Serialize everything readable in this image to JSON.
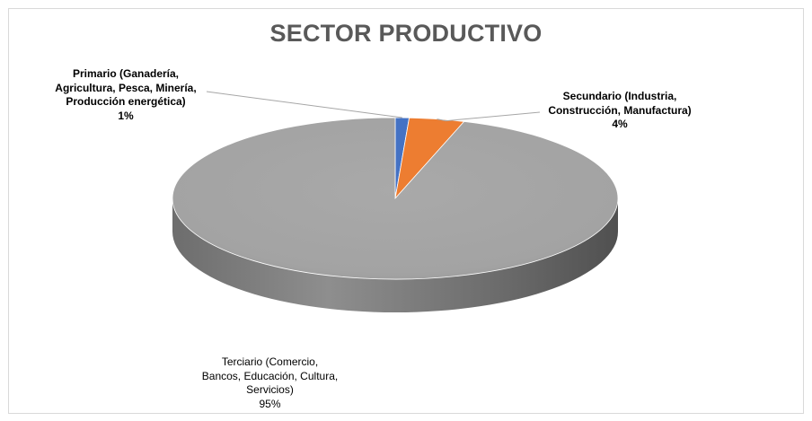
{
  "chart_data": {
    "type": "pie",
    "style": "3d",
    "title": "SECTOR PRODUCTIVO",
    "categories": [
      "Primario (Ganadería, Agricultura, Pesca, Minería, Producción energética)",
      "Secundario (Industria, Construcción, Manufactura)",
      "Terciario (Comercio, Bancos, Educación, Cultura, Servicios)"
    ],
    "values": [
      1,
      4,
      95
    ],
    "value_labels": [
      "1%",
      "4%",
      "95%"
    ],
    "colors": [
      "#4472c4",
      "#ed7d31",
      "#a5a5a5"
    ],
    "legend": "none",
    "data_label_lines": [
      [
        "Primario (Ganadería,",
        "Agricultura, Pesca, Minería,",
        "Producción energética)",
        "1%"
      ],
      [
        "Secundario (Industria,",
        "Construcción, Manufactura)",
        "4%"
      ],
      [
        "Terciario (Comercio,",
        "Bancos, Educación, Cultura,",
        "Servicios)",
        "95%"
      ]
    ]
  }
}
